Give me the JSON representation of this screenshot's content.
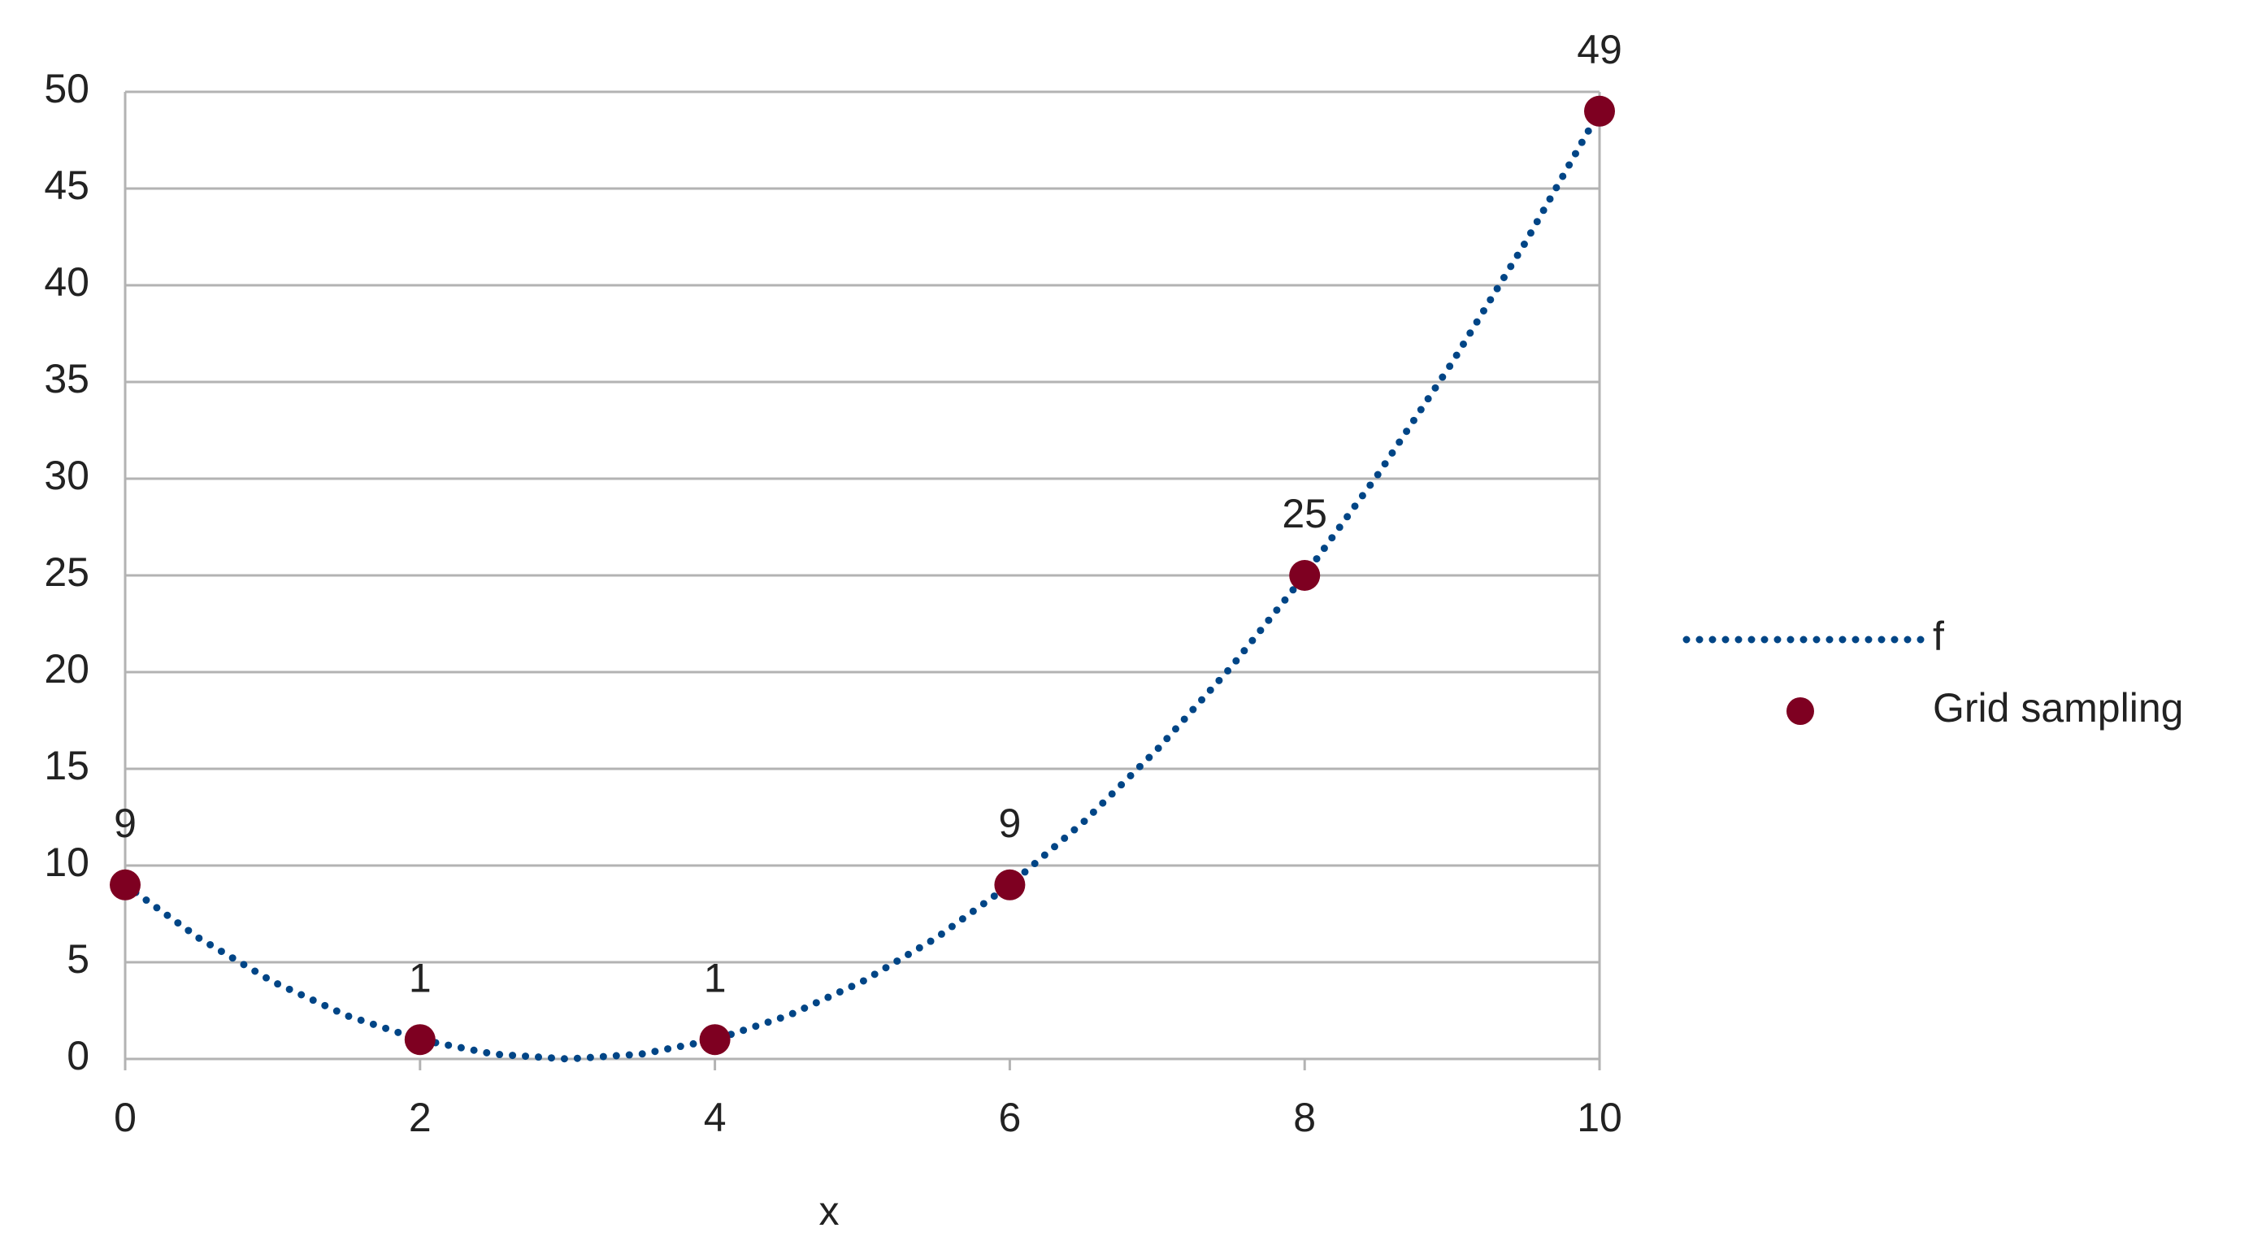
{
  "chart_data": {
    "type": "scatter",
    "x_label": "x",
    "xlim": [
      0,
      10
    ],
    "xticks": [
      0,
      2,
      4,
      6,
      8,
      10
    ],
    "ylim": [
      0,
      50
    ],
    "yticks": [
      0,
      5,
      10,
      15,
      20,
      25,
      30,
      35,
      40,
      45,
      50
    ],
    "grid": true,
    "legend": "right",
    "series": [
      {
        "name": "f",
        "type": "line",
        "style": "dotted",
        "color": "#004586",
        "x": [
          0,
          0.5,
          1,
          1.5,
          2,
          2.5,
          3,
          3.5,
          4,
          4.5,
          5,
          5.5,
          6,
          6.5,
          7,
          7.5,
          8,
          8.5,
          9,
          9.5,
          10
        ],
        "values": [
          9,
          6.25,
          4,
          2.25,
          1,
          0.25,
          0,
          0.25,
          1,
          2.25,
          4,
          6.25,
          9,
          12.25,
          16,
          20.25,
          25,
          30.25,
          36,
          42.25,
          49
        ]
      },
      {
        "name": "Grid sampling",
        "type": "markers",
        "color": "#7e0021",
        "data_labels": true,
        "x": [
          0,
          2,
          4,
          6,
          8,
          10
        ],
        "values": [
          9,
          1,
          1,
          9,
          25,
          49
        ]
      }
    ]
  }
}
